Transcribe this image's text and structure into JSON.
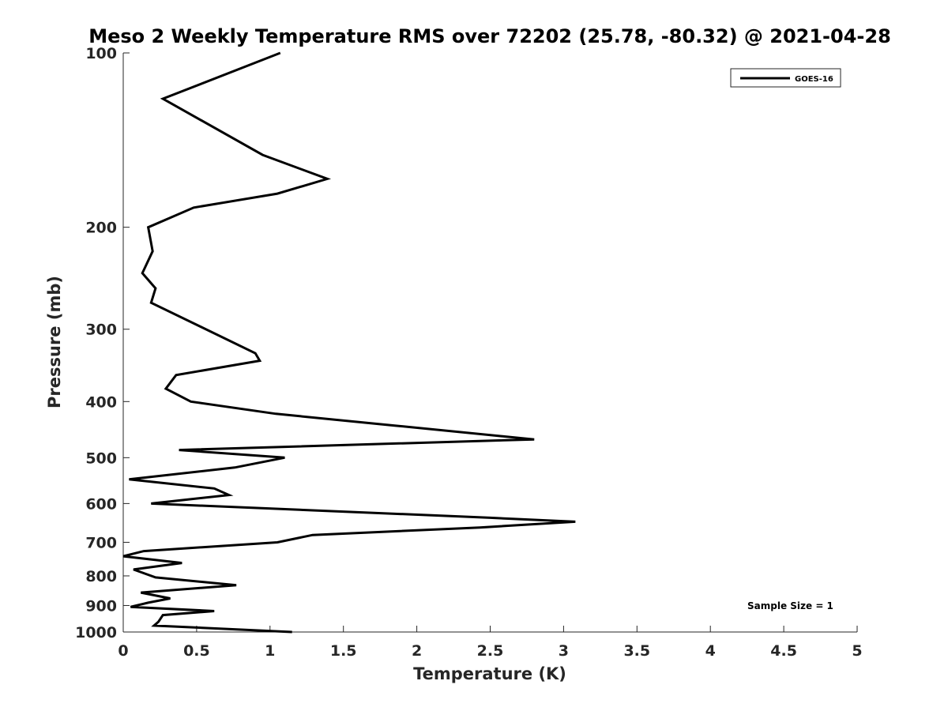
{
  "chart_data": {
    "type": "line",
    "title": "Meso 2 Weekly Temperature RMS over 72202 (25.78, -80.32) @ 2021-04-28",
    "xlabel": "Temperature (K)",
    "ylabel": "Pressure (mb)",
    "xlim": [
      0,
      5
    ],
    "ylim": [
      100,
      1000
    ],
    "y_scale": "log",
    "y_reversed": true,
    "grid": false,
    "legend_position": "top-right",
    "x_ticks": [
      0,
      0.5,
      1,
      1.5,
      2,
      2.5,
      3,
      3.5,
      4,
      4.5,
      5
    ],
    "x_tick_labels": [
      "0",
      "0.5",
      "1",
      "1.5",
      "2",
      "2.5",
      "3",
      "3.5",
      "4",
      "4.5",
      "5"
    ],
    "y_ticks": [
      100,
      200,
      300,
      400,
      500,
      600,
      700,
      800,
      900,
      1000
    ],
    "y_tick_labels": [
      "100",
      "200",
      "300",
      "400",
      "500",
      "600",
      "700",
      "800",
      "900",
      "1000"
    ],
    "series": [
      {
        "name": "GOES-16",
        "color": "#000000",
        "points": [
          [
            1.07,
            100
          ],
          [
            0.27,
            120
          ],
          [
            0.95,
            150
          ],
          [
            1.39,
            165
          ],
          [
            1.05,
            175
          ],
          [
            0.48,
            185
          ],
          [
            0.17,
            200
          ],
          [
            0.2,
            220
          ],
          [
            0.13,
            240
          ],
          [
            0.22,
            255
          ],
          [
            0.19,
            270
          ],
          [
            0.9,
            330
          ],
          [
            0.93,
            340
          ],
          [
            0.36,
            360
          ],
          [
            0.29,
            380
          ],
          [
            0.46,
            400
          ],
          [
            1.04,
            420
          ],
          [
            1.85,
            440
          ],
          [
            2.8,
            465
          ],
          [
            0.38,
            485
          ],
          [
            1.1,
            500
          ],
          [
            0.76,
            520
          ],
          [
            0.04,
            545
          ],
          [
            0.62,
            565
          ],
          [
            0.72,
            580
          ],
          [
            0.19,
            600
          ],
          [
            2.5,
            635
          ],
          [
            3.08,
            645
          ],
          [
            2.43,
            660
          ],
          [
            1.29,
            680
          ],
          [
            1.05,
            700
          ],
          [
            0.14,
            725
          ],
          [
            0.0,
            740
          ],
          [
            0.4,
            760
          ],
          [
            0.07,
            780
          ],
          [
            0.22,
            805
          ],
          [
            0.77,
            830
          ],
          [
            0.12,
            855
          ],
          [
            0.32,
            875
          ],
          [
            0.17,
            890
          ],
          [
            0.05,
            905
          ],
          [
            0.62,
            920
          ],
          [
            0.27,
            935
          ],
          [
            0.24,
            960
          ],
          [
            0.21,
            975
          ],
          [
            0.6,
            985
          ],
          [
            1.15,
            1000
          ]
        ]
      }
    ],
    "legend_entries": [
      "GOES-16"
    ],
    "annotations": [
      "Sample Size = 1"
    ]
  }
}
